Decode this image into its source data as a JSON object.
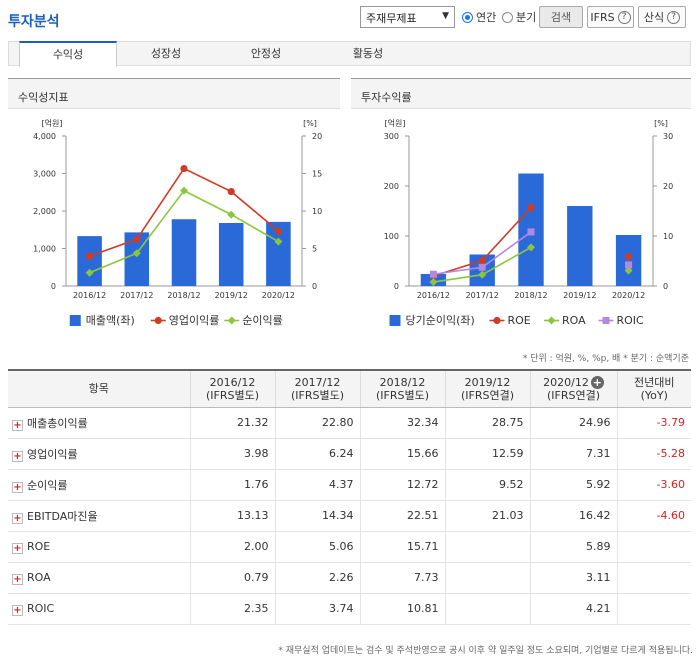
{
  "header": {
    "title": "투자분석",
    "select_value": "주재무제표",
    "radio_annual": "연간",
    "radio_quarter": "분기",
    "search_label": "검색",
    "ifrs_label": "IFRS",
    "formula_label": "산식",
    "help_glyph": "?"
  },
  "tabs": [
    "수익성",
    "성장성",
    "안정성",
    "활동성"
  ],
  "colors": {
    "bar": "#2a6ad8",
    "line_red": "#d13b24",
    "line_green": "#8cc63e",
    "line_purple": "#b18ae0",
    "accent": "#1b5fb5",
    "negative": "#e0201b"
  },
  "chart_data": [
    {
      "type": "bar",
      "title": "수익성지표",
      "categories": [
        "2016/12",
        "2017/12",
        "2018/12",
        "2019/12",
        "2020/12"
      ],
      "left_unit": "[억원]",
      "right_unit": "[%]",
      "left_ticks": [
        "0",
        "1,000",
        "2,000",
        "3,000",
        "4,000"
      ],
      "right_ticks": [
        "0",
        "5",
        "10",
        "15",
        "20"
      ],
      "ylim_left": [
        0,
        4000
      ],
      "ylim_right": [
        0,
        20
      ],
      "series": [
        {
          "name": "매출액(좌)",
          "kind": "bar",
          "axis": "left",
          "values": [
            1330,
            1430,
            1780,
            1680,
            1710
          ]
        },
        {
          "name": "영업이익률",
          "kind": "line",
          "axis": "right",
          "values": [
            3.98,
            6.24,
            15.66,
            12.59,
            7.31
          ]
        },
        {
          "name": "순이익률",
          "kind": "line",
          "axis": "right",
          "values": [
            1.76,
            4.37,
            12.72,
            9.52,
            5.92
          ]
        }
      ]
    },
    {
      "type": "bar",
      "title": "투자수익률",
      "categories": [
        "2016/12",
        "2017/12",
        "2018/12",
        "2019/12",
        "2020/12"
      ],
      "left_unit": "[억원]",
      "right_unit": "[%]",
      "left_ticks": [
        "0",
        "100",
        "200",
        "300"
      ],
      "right_ticks": [
        "0",
        "10",
        "20",
        "30"
      ],
      "ylim_left": [
        0,
        300
      ],
      "ylim_right": [
        0,
        30
      ],
      "series": [
        {
          "name": "당기순이익(좌)",
          "kind": "bar",
          "axis": "left",
          "values": [
            24,
            63,
            225,
            160,
            102
          ]
        },
        {
          "name": "ROE",
          "kind": "line",
          "axis": "right",
          "values": [
            2.0,
            5.06,
            15.71,
            null,
            5.89
          ]
        },
        {
          "name": "ROA",
          "kind": "line",
          "axis": "right",
          "values": [
            0.79,
            2.26,
            7.73,
            null,
            3.11
          ]
        },
        {
          "name": "ROIC",
          "kind": "line",
          "axis": "right",
          "values": [
            2.35,
            3.74,
            10.81,
            null,
            4.21
          ]
        }
      ]
    }
  ],
  "unit_note": "* 단위 : 억원, %, %p, 배   * 분기 : 순액기준",
  "table": {
    "headers": [
      {
        "line1": "항목",
        "line2": ""
      },
      {
        "line1": "2016/12",
        "line2": "(IFRS별도)"
      },
      {
        "line1": "2017/12",
        "line2": "(IFRS별도)"
      },
      {
        "line1": "2018/12",
        "line2": "(IFRS별도)"
      },
      {
        "line1": "2019/12",
        "line2": "(IFRS연결)"
      },
      {
        "line1": "2020/12",
        "line2": "(IFRS연결)"
      },
      {
        "line1": "전년대비",
        "line2": "(YoY)"
      }
    ],
    "expand_glyph": "+",
    "rows": [
      {
        "label": "매출총이익률",
        "values": [
          "21.32",
          "22.80",
          "32.34",
          "28.75",
          "24.96"
        ],
        "yoy": "-3.79"
      },
      {
        "label": "영업이익률",
        "values": [
          "3.98",
          "6.24",
          "15.66",
          "12.59",
          "7.31"
        ],
        "yoy": "-5.28"
      },
      {
        "label": "순이익률",
        "values": [
          "1.76",
          "4.37",
          "12.72",
          "9.52",
          "5.92"
        ],
        "yoy": "-3.60"
      },
      {
        "label": "EBITDA마진율",
        "values": [
          "13.13",
          "14.34",
          "22.51",
          "21.03",
          "16.42"
        ],
        "yoy": "-4.60"
      },
      {
        "label": "ROE",
        "values": [
          "2.00",
          "5.06",
          "15.71",
          "",
          "5.89"
        ],
        "yoy": ""
      },
      {
        "label": "ROA",
        "values": [
          "0.79",
          "2.26",
          "7.73",
          "",
          "3.11"
        ],
        "yoy": ""
      },
      {
        "label": "ROIC",
        "values": [
          "2.35",
          "3.74",
          "10.81",
          "",
          "4.21"
        ],
        "yoy": ""
      }
    ]
  },
  "footer_note": "* 재무실적 업데이트는 검수 및 주석반영으로 공시 이후 약 일주일 정도 소요되며, 기업별로 다르게 적용됩니다."
}
